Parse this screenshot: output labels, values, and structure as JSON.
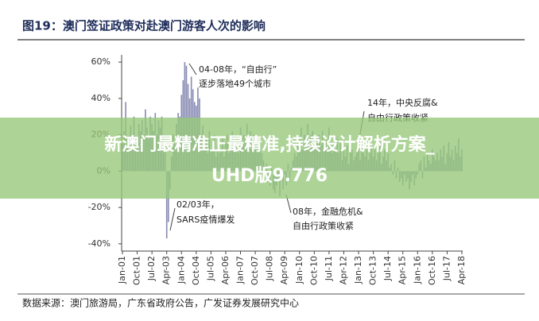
{
  "chart_data": {
    "type": "bar",
    "title": "图19：澳门签证政策对赴澳门游客人次的影响",
    "source": "数据来源：澳门旅游局，广东省政府公告，广发证券发展研究中心",
    "color": "#8a8db4",
    "ylim": [
      -44,
      64
    ],
    "yticks": [
      {
        "value": -40,
        "label": "-40%"
      },
      {
        "value": -20,
        "label": "-20%"
      },
      {
        "value": 0,
        "label": "0%"
      },
      {
        "value": 20,
        "label": "20%"
      },
      {
        "value": 40,
        "label": "40%"
      },
      {
        "value": 60,
        "label": "60%"
      }
    ],
    "annotations": [
      "04-08年，“自由行”",
      "逐步落地49个城市",
      "14年，中央反腐&",
      "自由行政策收紧",
      "02/03年，",
      "SARS疫情爆发",
      "08年，金融危机&",
      "自由行政策收紧"
    ],
    "categories": [
      "Jan-01",
      null,
      null,
      null,
      null,
      null,
      null,
      null,
      null,
      "Oct-01",
      null,
      null,
      null,
      null,
      null,
      null,
      null,
      null,
      "Jul-02",
      null,
      null,
      null,
      null,
      null,
      null,
      null,
      null,
      "Apr-03",
      null,
      null,
      null,
      null,
      null,
      null,
      null,
      null,
      "Jan-04",
      null,
      null,
      null,
      null,
      null,
      null,
      null,
      null,
      "Oct-04",
      null,
      null,
      null,
      null,
      null,
      null,
      null,
      null,
      "Jul-05",
      null,
      null,
      null,
      null,
      null,
      null,
      null,
      null,
      "Apr-06",
      null,
      null,
      null,
      null,
      null,
      null,
      null,
      null,
      "Jan-07",
      null,
      null,
      null,
      null,
      null,
      null,
      null,
      null,
      "Oct-07",
      null,
      null,
      null,
      null,
      null,
      null,
      null,
      null,
      "Jul-08",
      null,
      null,
      null,
      null,
      null,
      null,
      null,
      null,
      "Apr-09",
      null,
      null,
      null,
      null,
      null,
      null,
      null,
      null,
      "Jan-10",
      null,
      null,
      null,
      null,
      null,
      null,
      null,
      null,
      "Oct-10",
      null,
      null,
      null,
      null,
      null,
      null,
      null,
      null,
      "Jul-11",
      null,
      null,
      null,
      null,
      null,
      null,
      null,
      null,
      "Apr-12",
      null,
      null,
      null,
      null,
      null,
      null,
      null,
      null,
      "Jan-13",
      null,
      null,
      null,
      null,
      null,
      null,
      null,
      null,
      "Oct-13",
      null,
      null,
      null,
      null,
      null,
      null,
      null,
      null,
      "Jul-14",
      null,
      null,
      null,
      null,
      null,
      null,
      null,
      null,
      "Apr-15",
      null,
      null,
      null,
      null,
      null,
      null,
      null,
      null,
      "Jan-16",
      null,
      null,
      null,
      null,
      null,
      null,
      null,
      null,
      "Oct-16",
      null,
      null,
      null,
      null,
      null,
      null,
      null,
      null,
      "Jul-17",
      null,
      null,
      null,
      null,
      null,
      null,
      null,
      null,
      "Apr-18"
    ],
    "values": [
      15,
      22,
      38,
      18,
      12,
      25,
      20,
      30,
      14,
      18,
      26,
      22,
      28,
      20,
      34,
      24,
      18,
      30,
      26,
      22,
      32,
      20,
      28,
      24,
      30,
      18,
      14,
      -37,
      -28,
      -10,
      8,
      20,
      15,
      26,
      32,
      30,
      42,
      50,
      60,
      58,
      48,
      40,
      52,
      45,
      38,
      36,
      46,
      40,
      20,
      25,
      14,
      18,
      10,
      22,
      12,
      16,
      20,
      8,
      14,
      10,
      12,
      18,
      8,
      15,
      20,
      10,
      14,
      22,
      16,
      12,
      18,
      10,
      24,
      14,
      20,
      18,
      26,
      16,
      22,
      12,
      20,
      15,
      18,
      14,
      16,
      10,
      6,
      -2,
      4,
      -6,
      -8,
      2,
      -10,
      -12,
      -8,
      -5,
      -14,
      -4,
      -10,
      -2,
      -8,
      4,
      -6,
      2,
      6,
      10,
      8,
      14,
      18,
      24,
      12,
      20,
      16,
      26,
      14,
      20,
      22,
      12,
      18,
      16,
      20,
      14,
      22,
      16,
      18,
      12,
      24,
      14,
      10,
      16,
      12,
      18,
      10,
      16,
      6,
      12,
      8,
      14,
      4,
      10,
      12,
      6,
      8,
      10,
      12,
      6,
      14,
      10,
      8,
      12,
      6,
      10,
      14,
      8,
      12,
      6,
      10,
      14,
      4,
      8,
      12,
      6,
      10,
      2,
      4,
      -2,
      6,
      -4,
      2,
      -6,
      -4,
      -8,
      -2,
      -6,
      -4,
      -10,
      -6,
      -2,
      -8,
      -4,
      -2,
      4,
      6,
      -4,
      8,
      2,
      10,
      6,
      4,
      12,
      8,
      6,
      10,
      6,
      12,
      8,
      14,
      4,
      10,
      16,
      8,
      12,
      6,
      14,
      10,
      18,
      8,
      12
    ]
  },
  "overlay_banner": [
    "新澳门最精准正最精准,持续设计解析方案_",
    "UHD版9.776"
  ]
}
